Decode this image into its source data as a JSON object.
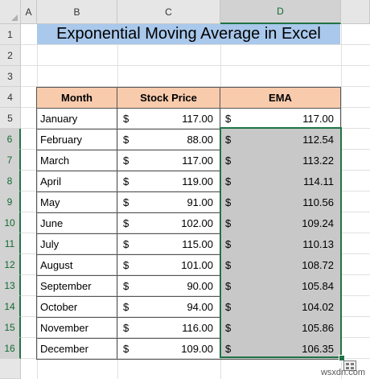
{
  "columns": [
    "A",
    "B",
    "C",
    "D"
  ],
  "rows": [
    "1",
    "2",
    "3",
    "4",
    "5",
    "6",
    "7",
    "8",
    "9",
    "10",
    "11",
    "12",
    "13",
    "14",
    "15",
    "16"
  ],
  "title": "Exponential Moving Average in Excel",
  "headers": {
    "month": "Month",
    "price": "Stock Price",
    "ema": "EMA"
  },
  "currency": "$",
  "data": [
    {
      "month": "January",
      "price": "117.00",
      "ema": "117.00"
    },
    {
      "month": "February",
      "price": "88.00",
      "ema": "112.54"
    },
    {
      "month": "March",
      "price": "117.00",
      "ema": "113.22"
    },
    {
      "month": "April",
      "price": "119.00",
      "ema": "114.11"
    },
    {
      "month": "May",
      "price": "91.00",
      "ema": "110.56"
    },
    {
      "month": "June",
      "price": "102.00",
      "ema": "109.24"
    },
    {
      "month": "July",
      "price": "115.00",
      "ema": "110.13"
    },
    {
      "month": "August",
      "price": "101.00",
      "ema": "108.72"
    },
    {
      "month": "September",
      "price": "90.00",
      "ema": "105.84"
    },
    {
      "month": "October",
      "price": "94.00",
      "ema": "104.02"
    },
    {
      "month": "November",
      "price": "116.00",
      "ema": "105.86"
    },
    {
      "month": "December",
      "price": "109.00",
      "ema": "106.35"
    }
  ],
  "selected_column": "D",
  "selected_rows": [
    "6",
    "7",
    "8",
    "9",
    "10",
    "11",
    "12",
    "13",
    "14",
    "15",
    "16"
  ],
  "colors": {
    "title_fill": "#a9c8eb",
    "header_fill": "#f8cbad",
    "selection": "#217346",
    "selected_fill": "#c8c8c8"
  },
  "watermark": "wsxdn.com"
}
